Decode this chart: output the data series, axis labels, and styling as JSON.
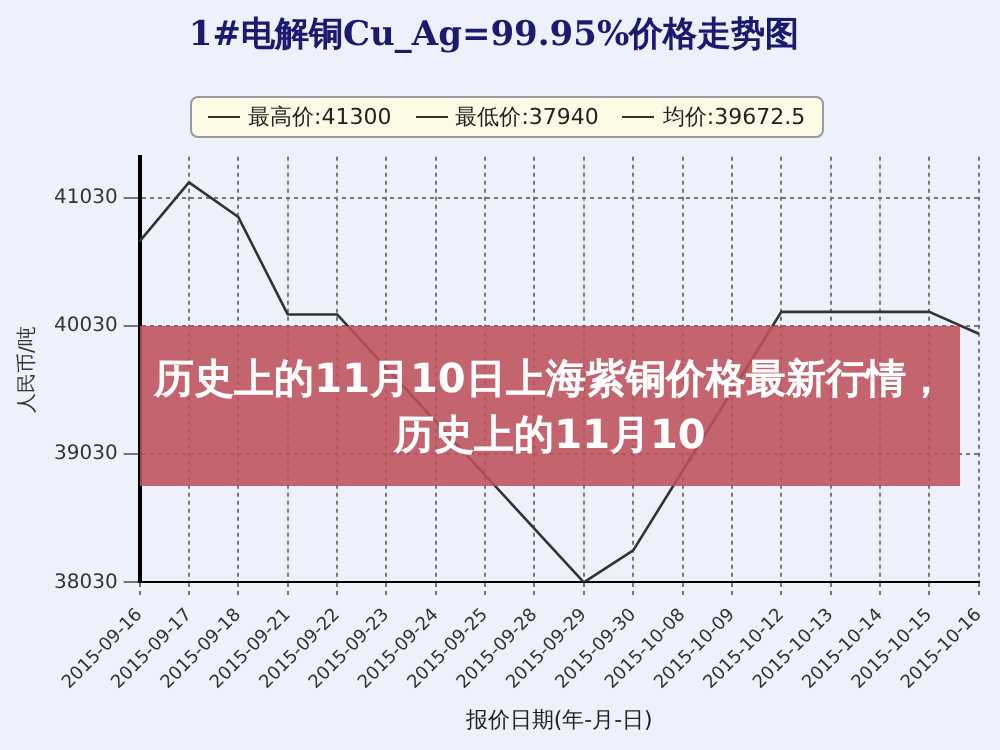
{
  "chart_data": {
    "type": "line",
    "title": "1#电解铜Cu_Ag=99.95%价格走势图",
    "xlabel": "报价日期(年-月-日)",
    "ylabel": "人民币/吨",
    "categories": [
      "2015-09-16",
      "2015-09-17",
      "2015-09-18",
      "2015-09-21",
      "2015-09-22",
      "2015-09-23",
      "2015-09-24",
      "2015-09-25",
      "2015-09-28",
      "2015-09-29",
      "2015-09-30",
      "2015-10-08",
      "2015-10-09",
      "2015-10-12",
      "2015-10-13",
      "2015-10-14",
      "2015-10-15",
      "2015-10-16"
    ],
    "series": [
      {
        "color": "#333333",
        "values": [
          40690,
          41150,
          40880,
          40120,
          40120,
          null,
          null,
          null,
          null,
          38030,
          38280,
          null,
          null,
          40140,
          null,
          null,
          40140,
          39970
        ]
      }
    ],
    "ylim": [
      38030,
      41350
    ],
    "yticks": [
      41030,
      40030,
      39030,
      38030
    ],
    "grid": true,
    "line_style": "solid",
    "marker": "none",
    "legend": false,
    "annotations": [
      "最高价:41300",
      "最低价:37940",
      "均价:39672.5",
      "历史上的11月10日上海紫铜价格最新行情，历史上的11月10"
    ]
  }
}
